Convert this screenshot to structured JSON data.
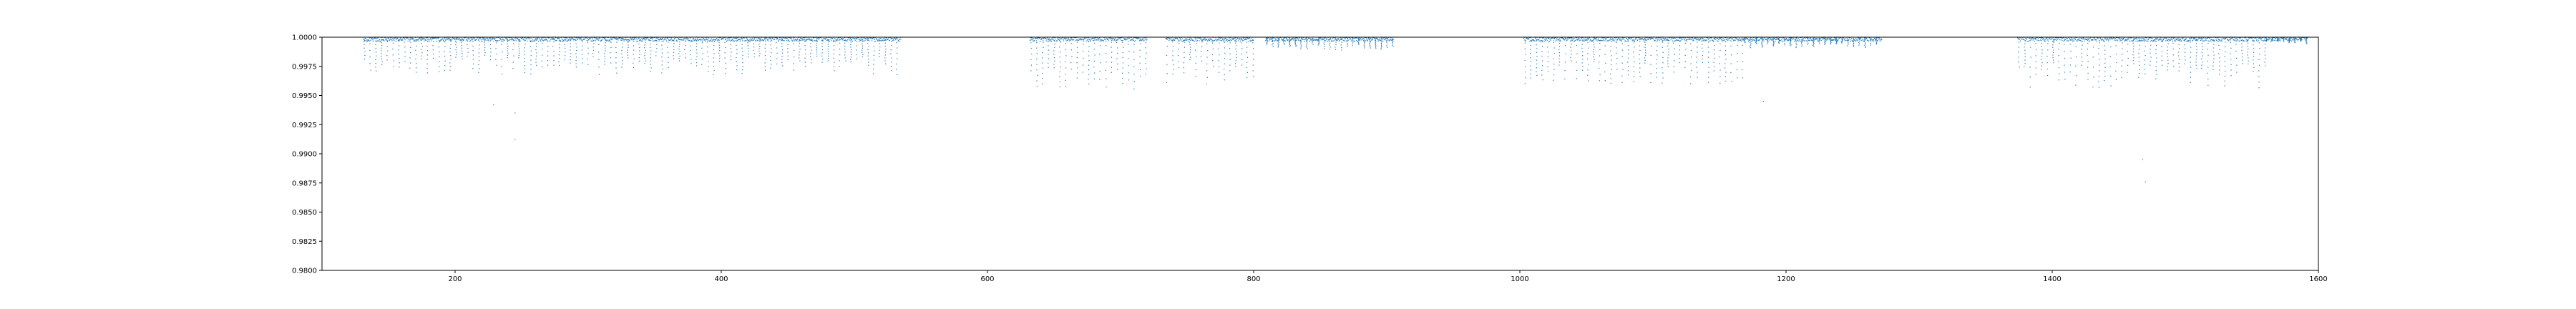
{
  "chart_data": {
    "type": "scatter",
    "title": "",
    "xlabel": "",
    "ylabel": "",
    "xlim": [
      100,
      1600
    ],
    "ylim": [
      0.98,
      1.0
    ],
    "grid": false,
    "legend": "none",
    "x_ticks": [
      200,
      400,
      600,
      800,
      1000,
      1200,
      1400,
      1600
    ],
    "x_tick_labels": [
      "200",
      "400",
      "600",
      "800",
      "1000",
      "1200",
      "1400",
      "1600"
    ],
    "y_ticks": [
      0.98,
      0.9825,
      0.985,
      0.9875,
      0.99,
      0.9925,
      0.995,
      0.9975,
      1.0
    ],
    "y_tick_labels": [
      "0.9800",
      "0.9825",
      "0.9850",
      "0.9875",
      "0.9900",
      "0.9925",
      "0.9950",
      "0.9975",
      "1.0000"
    ],
    "point_color": "#1f77b4",
    "series": [
      {
        "segments": [
          {
            "x_start": 131,
            "x_end": 535,
            "typical_depth": 0.0028,
            "cadence_days": 4.3
          },
          {
            "x_start": 632,
            "x_end": 720,
            "typical_depth": 0.004,
            "cadence_days": 4.3
          },
          {
            "x_start": 734,
            "x_end": 800,
            "typical_depth": 0.0035,
            "cadence_days": 4.3
          },
          {
            "x_start": 809,
            "x_end": 905,
            "typical_depth": 0.001,
            "cadence_days": 4.3
          },
          {
            "x_start": 1003,
            "x_end": 1168,
            "typical_depth": 0.0035,
            "cadence_days": 4.3
          },
          {
            "x_start": 1168,
            "x_end": 1272,
            "typical_depth": 0.0008,
            "cadence_days": 4.3
          },
          {
            "x_start": 1374,
            "x_end": 1560,
            "typical_depth": 0.0038,
            "cadence_days": 4.3
          },
          {
            "x_start": 1560,
            "x_end": 1592,
            "typical_depth": 0.0005,
            "cadence_days": 4.3
          }
        ],
        "deep_outliers": [
          {
            "x": 229,
            "y": 0.9942
          },
          {
            "x": 245,
            "y": 0.9912
          },
          {
            "x": 245,
            "y": 0.9935
          },
          {
            "x": 1183,
            "y": 0.9945
          },
          {
            "x": 1468,
            "y": 0.9895
          },
          {
            "x": 1470,
            "y": 0.9876
          }
        ]
      }
    ]
  }
}
